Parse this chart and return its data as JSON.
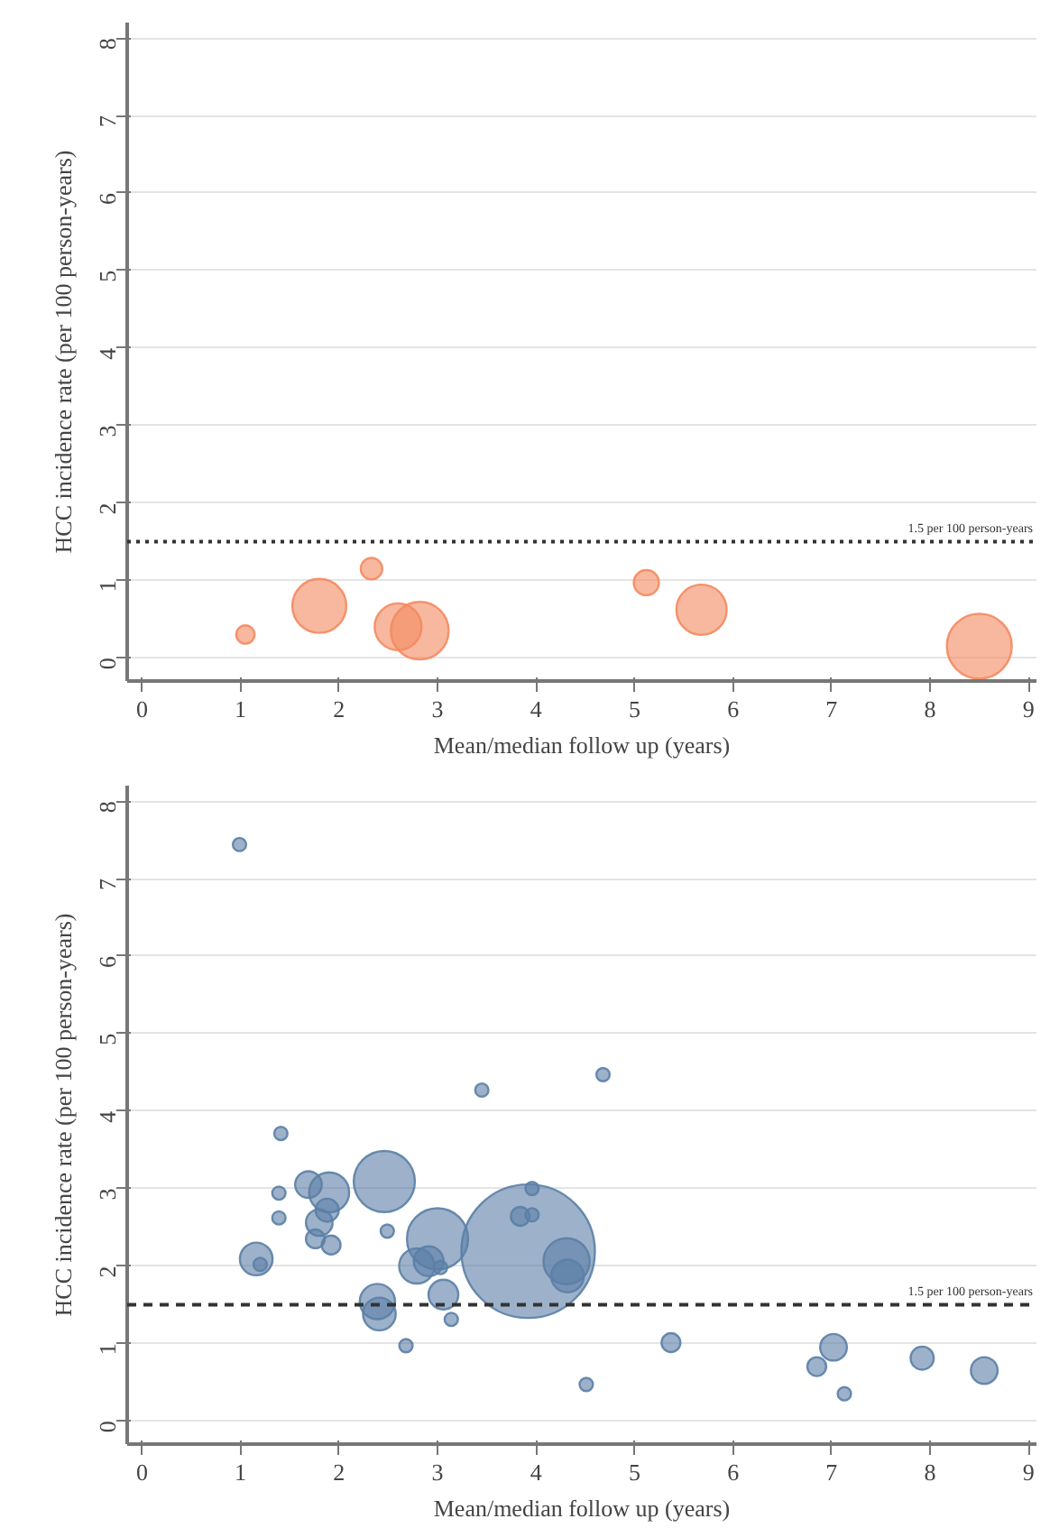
{
  "chart_data": [
    {
      "type": "bubble",
      "xlabel": "Mean/median follow up (years)",
      "ylabel": "HCC incidence rate (per 100 person-years)",
      "xlim": [
        -0.15,
        9.08
      ],
      "ylim": [
        -0.3,
        8.2
      ],
      "xticks": [
        0,
        1,
        2,
        3,
        4,
        5,
        6,
        7,
        8,
        9
      ],
      "yticks": [
        0,
        1,
        2,
        3,
        4,
        5,
        6,
        7,
        8
      ],
      "grid": "y",
      "ref_lines": [
        {
          "axis": "y",
          "value": 1.5,
          "label": "1.5 per 100 person-years",
          "line_style": "dotted",
          "color": "#333333"
        }
      ],
      "series": [
        {
          "color": "#f4895f",
          "x": [
            1.05,
            1.8,
            2.33,
            2.6,
            2.82,
            5.12,
            5.68,
            8.5
          ],
          "values": [
            0.3,
            0.67,
            1.15,
            0.4,
            0.35,
            0.97,
            0.62,
            0.15
          ],
          "sizes": [
            0.08,
            0.69,
            0.11,
            0.52,
            0.79,
            0.15,
            0.6,
            1
          ]
        }
      ]
    },
    {
      "type": "bubble",
      "xlabel": "Mean/median follow up (years)",
      "ylabel": "HCC incidence rate (per 100 person-years)",
      "xlim": [
        -0.15,
        9.08
      ],
      "ylim": [
        -0.3,
        8.2
      ],
      "xticks": [
        0,
        1,
        2,
        3,
        4,
        5,
        6,
        7,
        8,
        9
      ],
      "yticks": [
        0,
        1,
        2,
        3,
        4,
        5,
        6,
        7,
        8
      ],
      "grid": "y",
      "ref_lines": [
        {
          "axis": "y",
          "value": 1.5,
          "label": "1.5 per 100 person-years",
          "line_style": "dashed",
          "color": "#333333"
        }
      ],
      "series": [
        {
          "color": "#5b7fa6",
          "x": [
            3.92,
            2.46,
            3.0,
            4.31,
            1.9,
            1.16,
            2.39,
            2.41,
            4.32,
            2.79,
            2.91,
            3.06,
            1.69,
            1.8,
            1.88,
            7.02,
            8.55,
            1.76,
            1.92,
            5.37,
            6.85,
            7.92,
            3.84,
            2.49,
            3.03,
            3.14,
            3.96,
            1.39,
            1.2,
            1.41,
            1.39,
            2.68,
            3.45,
            3.96,
            4.68,
            4.51,
            7.13,
            0.99
          ],
          "values": [
            2.19,
            3.09,
            2.35,
            2.06,
            2.95,
            2.09,
            1.54,
            1.38,
            1.87,
            2.0,
            2.06,
            1.63,
            3.05,
            2.56,
            2.72,
            0.95,
            0.65,
            2.35,
            2.27,
            1.01,
            0.7,
            0.81,
            2.64,
            2.45,
            1.98,
            1.31,
            2.66,
            2.94,
            2.02,
            3.71,
            2.62,
            0.97,
            4.27,
            3.0,
            4.47,
            0.47,
            0.35,
            7.44
          ],
          "sizes": [
            1,
            0.21,
            0.21,
            0.12,
            0.09,
            0.06,
            0.07,
            0.06,
            0.06,
            0.07,
            0.05,
            0.05,
            0.04,
            0.04,
            0.03,
            0.04,
            0.04,
            0.02,
            0.02,
            0.02,
            0.02,
            0.03,
            0.02,
            0.01,
            0.01,
            0.01,
            0.01,
            0.01,
            0.01,
            0.01,
            0.01,
            0.01,
            0.01,
            0.01,
            0.01,
            0.01,
            0.01,
            0.01
          ]
        }
      ]
    }
  ]
}
